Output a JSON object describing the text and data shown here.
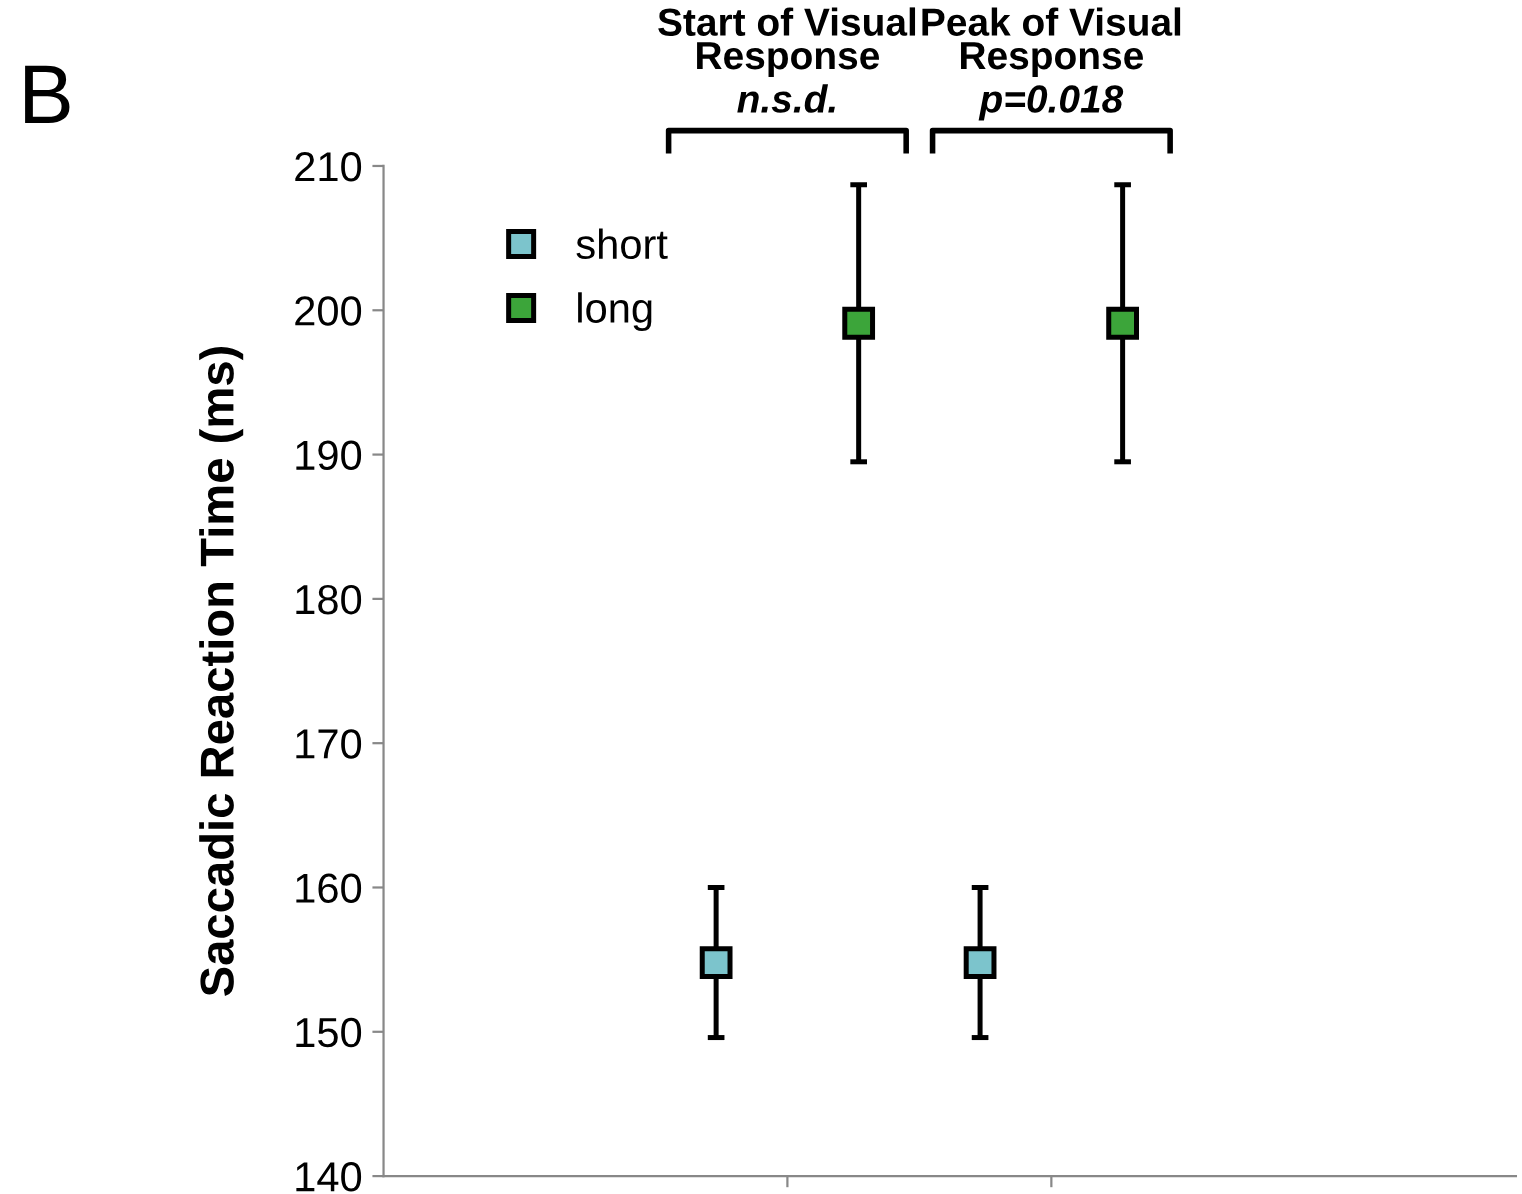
{
  "chart_data": {
    "type": "scatter",
    "ylabel": "Saccadic Reaction Time (ms)",
    "annotations": [
      "B",
      "Start of Visual\nResponse",
      "n.s.d.",
      "Peak of Visual\nResponse",
      "p=0.018"
    ],
    "categories": [
      null,
      null
    ],
    "ylim": [
      140,
      210
    ],
    "yticks": [
      140,
      150,
      160,
      170,
      180,
      190,
      200,
      210
    ],
    "tick_labels": "y",
    "marker": "square",
    "legend": "top left",
    "series": [
      {
        "name": "short",
        "color": "#7cc4cc",
        "values": [
          154.8,
          154.8
        ],
        "errors": [
          5.2,
          5.2
        ]
      },
      {
        "name": "long",
        "color": "#3ca53a",
        "values": [
          199.1,
          199.1
        ],
        "errors": [
          9.6,
          9.6
        ]
      }
    ]
  }
}
